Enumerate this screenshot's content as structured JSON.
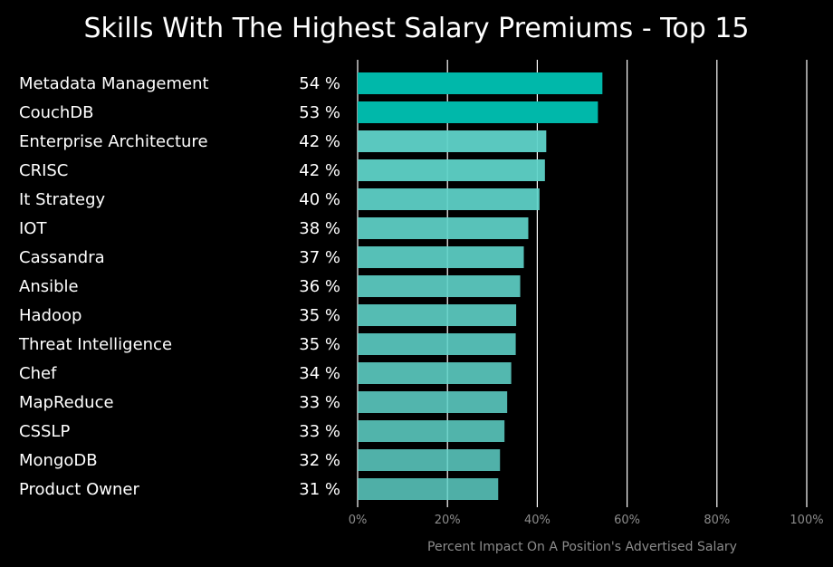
{
  "chart_data": {
    "type": "bar",
    "orientation": "horizontal",
    "title": "Skills With The Highest Salary Premiums - Top 15",
    "xlabel": "Percent Impact On A Position's Advertised Salary",
    "xlim": [
      0,
      100
    ],
    "x_ticks": [
      "0%",
      "20%",
      "40%",
      "60%",
      "80%",
      "100%"
    ],
    "grid": "vertical",
    "categories": [
      "Metadata Management",
      "CouchDB",
      "Enterprise Architecture",
      "CRISC",
      "It Strategy",
      "IOT",
      "Cassandra",
      "Ansible",
      "Hadoop",
      "Threat Intelligence",
      "Chef",
      "MapReduce",
      "CSSLP",
      "MongoDB",
      "Product Owner"
    ],
    "values": [
      54.5,
      53.5,
      42.0,
      41.7,
      40.5,
      38.0,
      37.0,
      36.2,
      35.3,
      35.2,
      34.2,
      33.3,
      32.7,
      31.7,
      31.3
    ],
    "value_labels": [
      "54 %",
      "53 %",
      "42 %",
      "42 %",
      "40 %",
      "38 %",
      "37 %",
      "36 %",
      "35 %",
      "35 %",
      "34 %",
      "33 %",
      "33 %",
      "32 %",
      "31 %"
    ],
    "colors": {
      "background": "#000000",
      "text": "#ffffff",
      "axis_text": "#8c8c8c",
      "grid": "#ffffff",
      "bar_strong": "#00b8aa",
      "bar_light": "#5fd3c9"
    }
  }
}
